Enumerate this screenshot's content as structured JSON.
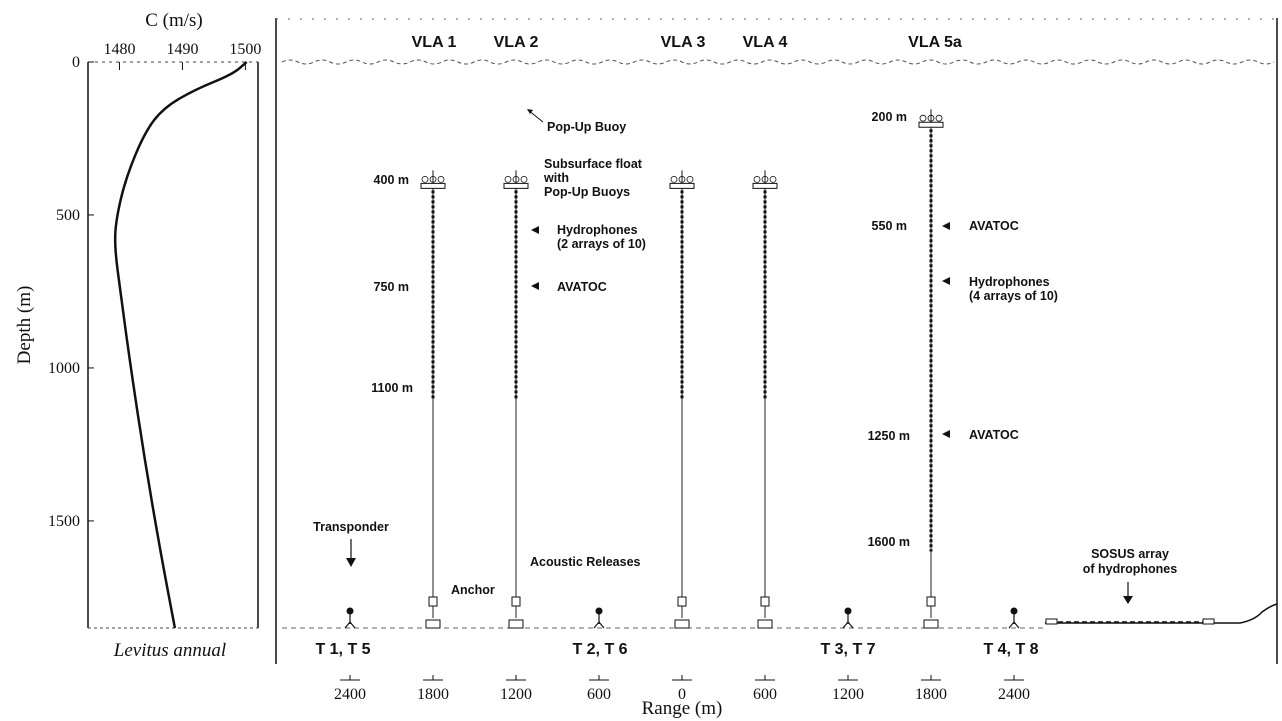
{
  "sound_speed_panel": {
    "x_title": "C (m/s)",
    "x_ticks": [
      "1480",
      "1490",
      "1500"
    ],
    "y_title": "Depth (m)",
    "y_ticks": [
      "0",
      "500",
      "1000",
      "1500"
    ],
    "caption": "Levitus annual",
    "profile": [
      {
        "c": 1500.2,
        "depth": 0
      },
      {
        "c": 1498,
        "depth": 40
      },
      {
        "c": 1492,
        "depth": 90
      },
      {
        "c": 1487,
        "depth": 150
      },
      {
        "c": 1484,
        "depth": 230
      },
      {
        "c": 1481,
        "depth": 380
      },
      {
        "c": 1479.5,
        "depth": 510
      },
      {
        "c": 1479.2,
        "depth": 600
      },
      {
        "c": 1480.2,
        "depth": 760
      },
      {
        "c": 1481.8,
        "depth": 1000
      },
      {
        "c": 1484,
        "depth": 1300
      },
      {
        "c": 1486.5,
        "depth": 1600
      },
      {
        "c": 1488.8,
        "depth": 1850
      }
    ],
    "c_range": [
      1475,
      1502
    ],
    "depth_range": [
      0,
      1850
    ]
  },
  "vlas": [
    {
      "label": "VLA 1",
      "range": -1800,
      "top": 400,
      "bottom": 1100
    },
    {
      "label": "VLA 2",
      "range": -1200,
      "top": 400,
      "bottom": 1100
    },
    {
      "label": "VLA 3",
      "range": 0,
      "top": 400,
      "bottom": 1100
    },
    {
      "label": "VLA 4",
      "range": 600,
      "top": 400,
      "bottom": 1100
    },
    {
      "label": "VLA 5a",
      "range": 1800,
      "top": 200,
      "bottom": 1600
    }
  ],
  "depth_labels": {
    "left": [
      "400 m",
      "750 m",
      "1100 m"
    ],
    "right": [
      "200 m",
      "550 m",
      "1250 m",
      "1600 m"
    ]
  },
  "annotations": {
    "popup_buoy": "Pop-Up Buoy",
    "subsurface_float": [
      "Subsurface float",
      "with",
      "Pop-Up Buoys"
    ],
    "hydrophones_left": [
      "Hydrophones",
      "(2 arrays of 10)"
    ],
    "avatoc_left": "AVATOC",
    "acoustic_releases": "Acoustic Releases",
    "anchor": "Anchor",
    "transponder": "Transponder",
    "avatoc_550": "AVATOC",
    "hydrophones_right": [
      "Hydrophones",
      "(4 arrays of 10)"
    ],
    "avatoc_1250": "AVATOC",
    "sosus": [
      "SOSUS array",
      "of hydrophones"
    ]
  },
  "transponders": [
    {
      "label": "T 1, T 5",
      "range": -2400
    },
    {
      "label": "T 2, T 6",
      "range": -600
    },
    {
      "label": "T 3, T 7",
      "range": 1200
    },
    {
      "label": "T 4, T 8",
      "range": 2400
    }
  ],
  "range_axis": {
    "title": "Range (m)",
    "ticks": [
      {
        "label": "2400",
        "range": -2400
      },
      {
        "label": "1800",
        "range": -1800
      },
      {
        "label": "1200",
        "range": -1200
      },
      {
        "label": "600",
        "range": -600
      },
      {
        "label": "0",
        "range": 0
      },
      {
        "label": "600",
        "range": 600
      },
      {
        "label": "1200",
        "range": 1200
      },
      {
        "label": "1800",
        "range": 1800
      },
      {
        "label": "2400",
        "range": 2400
      }
    ]
  }
}
